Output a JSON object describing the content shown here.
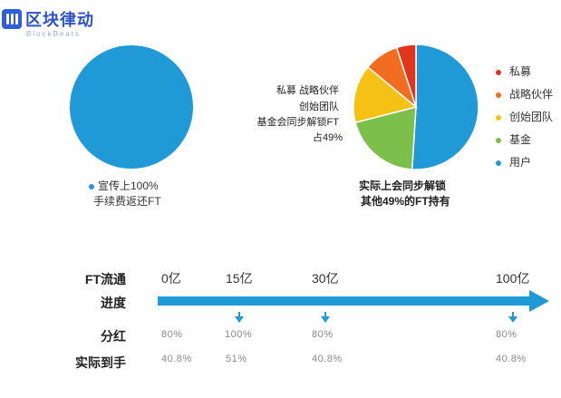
{
  "logo": {
    "name_cn": "区块律动",
    "name_en": "BlockBeats",
    "color": "#2f5fd8"
  },
  "left_chart": {
    "note_line1": "宣传上100%",
    "note_line2": "手续费返还FT"
  },
  "right_chart": {
    "annotation_lines": [
      "私募 战略伙伴",
      "创始团队",
      "基金会同步解锁FT",
      "占49%"
    ],
    "caption_line1": "实际上会同步解锁",
    "caption_line2": "其他49%的FT持有"
  },
  "legend": [
    {
      "label": "私募",
      "color": "#e0341d"
    },
    {
      "label": "战略伙伴",
      "color": "#f26d21"
    },
    {
      "label": "创始团队",
      "color": "#f5c115"
    },
    {
      "label": "基金",
      "color": "#7cc04b"
    },
    {
      "label": "用户",
      "color": "#1f9ad7"
    }
  ],
  "timeline": {
    "labels": {
      "ft_flow": "FT流通",
      "progress": "进度",
      "dividend": "分红",
      "actual": "实际到手"
    },
    "milestones": [
      {
        "amount": "0亿",
        "dividend": "80%",
        "actual": "40.8%",
        "arrow": false
      },
      {
        "amount": "15亿",
        "dividend": "100%",
        "actual": "51%",
        "arrow": true
      },
      {
        "amount": "30亿",
        "dividend": "80%",
        "actual": "40.8%",
        "arrow": true
      },
      {
        "amount": "100亿",
        "dividend": "80%",
        "actual": "40.8%",
        "arrow": true
      }
    ],
    "bar_color": "#1f9ad7"
  },
  "chart_data": [
    {
      "type": "pie",
      "categories": [
        "手续费返还FT"
      ],
      "values": [
        100
      ],
      "colors": [
        "#1f9ad7"
      ]
    },
    {
      "type": "pie",
      "categories": [
        "用户",
        "基金",
        "创始团队",
        "战略伙伴",
        "私募"
      ],
      "values": [
        51,
        20,
        15,
        9,
        5
      ],
      "colors": [
        "#1f9ad7",
        "#7cc04b",
        "#f5c115",
        "#f26d21",
        "#e0341d"
      ],
      "legend_position": "right"
    }
  ]
}
